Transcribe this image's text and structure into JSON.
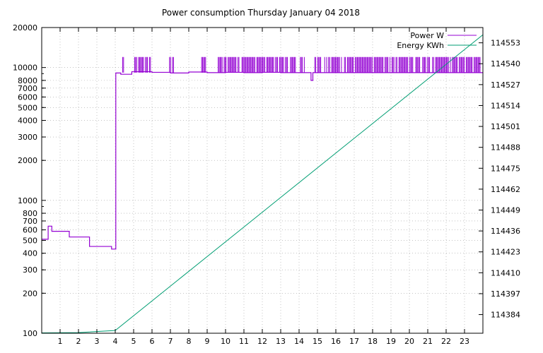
{
  "chart_data": {
    "type": "line",
    "title": "Power consumption Thursday January 04 2018",
    "xlabel": "",
    "ylabel": "",
    "y2label": "",
    "x_range": [
      0,
      24
    ],
    "x_ticks": [
      1,
      2,
      3,
      4,
      5,
      6,
      7,
      8,
      9,
      10,
      11,
      12,
      13,
      14,
      15,
      16,
      17,
      18,
      19,
      20,
      21,
      22,
      23
    ],
    "y_scale": "log",
    "y_range": [
      100,
      20000
    ],
    "y_ticks": [
      100,
      200,
      300,
      400,
      500,
      600,
      700,
      800,
      1000,
      2000,
      3000,
      4000,
      5000,
      6000,
      7000,
      8000,
      10000,
      20000
    ],
    "y2_range": [
      114372.4,
      114562.5
    ],
    "y2_ticks": [
      114384,
      114397,
      114410,
      114423,
      114436,
      114449,
      114462,
      114475,
      114488,
      114501,
      114514,
      114527,
      114540,
      114553
    ],
    "grid": true,
    "legend_position": "top-right",
    "series": [
      {
        "name": "Power W",
        "axis": "y",
        "color": "#9400d3",
        "steps": [
          {
            "x": 0.0,
            "y": 510
          },
          {
            "x": 0.35,
            "y": 640
          },
          {
            "x": 0.55,
            "y": 585
          },
          {
            "x": 1.5,
            "y": 530
          },
          {
            "x": 2.6,
            "y": 450
          },
          {
            "x": 3.8,
            "y": 430
          },
          {
            "x": 4.03,
            "y": 9100
          },
          {
            "x": 4.3,
            "y": 8900
          },
          {
            "x": 4.9,
            "y": 9300
          },
          {
            "x": 6.0,
            "y": 9200
          },
          {
            "x": 7.0,
            "y": 9100
          },
          {
            "x": 8.0,
            "y": 9250
          },
          {
            "x": 9.0,
            "y": 9150
          },
          {
            "x": 10.0,
            "y": 9200
          },
          {
            "x": 11.0,
            "y": 9150
          },
          {
            "x": 12.0,
            "y": 9200
          },
          {
            "x": 13.0,
            "y": 9150
          },
          {
            "x": 14.0,
            "y": 9150
          },
          {
            "x": 14.65,
            "y": 8000
          },
          {
            "x": 14.75,
            "y": 9150
          },
          {
            "x": 24.0,
            "y": 9150
          }
        ],
        "spike_high": 12000,
        "spike_regions": [
          [
            4.4,
            4.5
          ],
          [
            5.0,
            6.0
          ],
          [
            6.9,
            7.2
          ],
          [
            8.7,
            9.0
          ],
          [
            9.6,
            14.3
          ],
          [
            14.8,
            24.0
          ]
        ]
      },
      {
        "name": "Energy KWh",
        "axis": "y2",
        "color": "#009e73",
        "points": [
          {
            "x": 0.0,
            "y": 114372.6
          },
          {
            "x": 2.0,
            "y": 114372.8
          },
          {
            "x": 4.0,
            "y": 114374.1
          },
          {
            "x": 24.0,
            "y": 114558.0
          }
        ]
      }
    ]
  }
}
